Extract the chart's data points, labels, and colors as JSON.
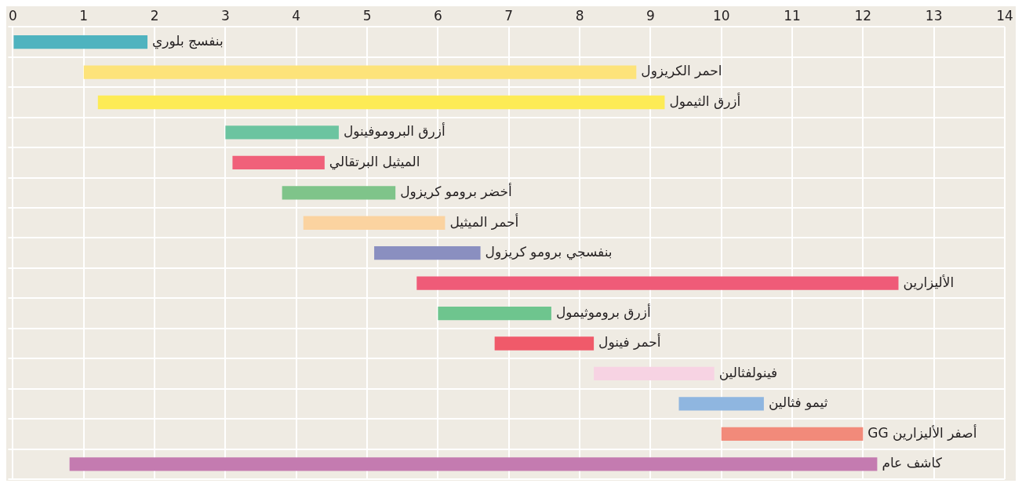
{
  "chart_data": {
    "type": "bar",
    "orientation": "horizontal",
    "categories": [
      "بنفسج بلوري",
      "احمر الكريزول",
      "أزرق الثيمول",
      "أزرق البروموفينول",
      "الميثيل البرتقالي",
      "أخضر برومو كريزول",
      "أحمر الميثيل",
      "بنفسجي برومو كريزول",
      "الأليزارين",
      "أزرق بروموثيمول",
      "أحمر فينول",
      "فينولفثالين",
      "ثيمو فثالين",
      "أصفر الأليزارين GG",
      "كاشف عام"
    ],
    "base": [
      0,
      1.0,
      1.2,
      3.0,
      3.1,
      3.8,
      4.1,
      5.1,
      5.7,
      6.0,
      6.8,
      8.2,
      9.4,
      10.0,
      0.8
    ],
    "values": [
      1.9,
      7.8,
      8.0,
      1.6,
      1.3,
      1.6,
      2.0,
      1.5,
      6.8,
      1.6,
      1.4,
      1.7,
      1.2,
      2.0,
      11.4
    ],
    "colors": [
      "#4fb3bf",
      "#fde37a",
      "#fdeb55",
      "#6cc4a0",
      "#f0607a",
      "#7fc48a",
      "#fbd3a0",
      "#8a8fc0",
      "#ef5b78",
      "#6ec58e",
      "#f05a6a",
      "#f7d3e3",
      "#8fb6e0",
      "#f28a7a",
      "#c47bb0"
    ],
    "xlim": [
      0,
      14
    ],
    "xticks": [
      0,
      1,
      2,
      3,
      4,
      5,
      6,
      7,
      8,
      9,
      10,
      11,
      12,
      13,
      14
    ],
    "grid": true,
    "tick_labels": "x"
  }
}
